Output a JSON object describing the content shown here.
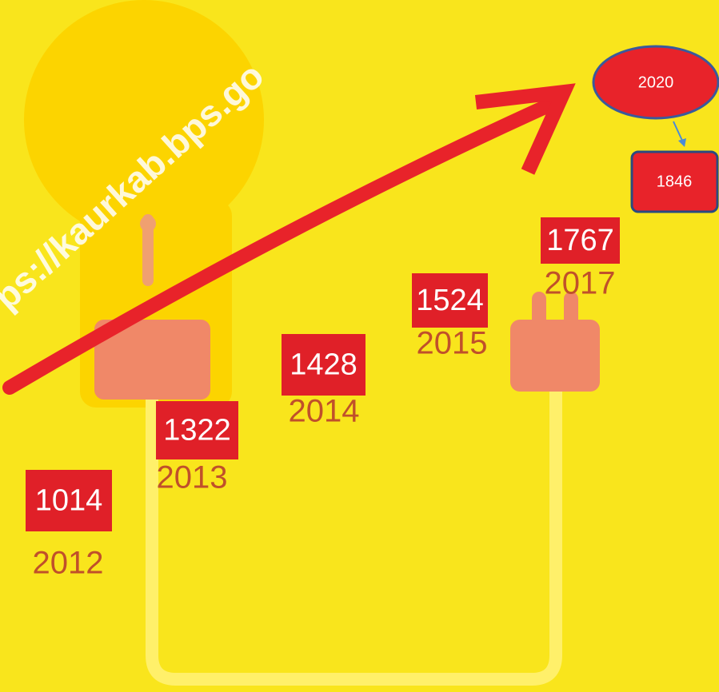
{
  "watermark": "ps://kaurkab.bps.go",
  "items": [
    {
      "value": 1014,
      "year": 2012
    },
    {
      "value": 1322,
      "year": 2013
    },
    {
      "value": 1428,
      "year": 2014
    },
    {
      "value": 1524,
      "year": 2015
    },
    {
      "value": 1767,
      "year": 2017
    }
  ],
  "callout": {
    "year": 2020,
    "value": 1846
  }
}
